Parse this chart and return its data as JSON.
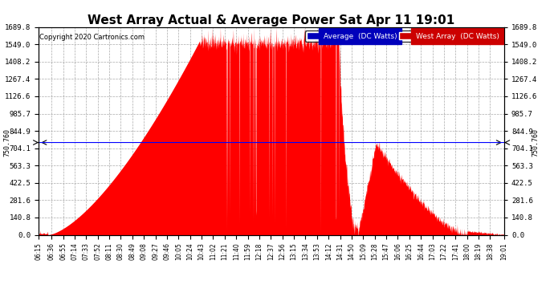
{
  "title": "West Array Actual & Average Power Sat Apr 11 19:01",
  "copyright": "Copyright 2020 Cartronics.com",
  "legend_labels": [
    "Average  (DC Watts)",
    "West Array  (DC Watts)"
  ],
  "legend_bg_colors": [
    "#0000bb",
    "#cc0000"
  ],
  "yticks": [
    0.0,
    140.8,
    281.6,
    422.5,
    563.3,
    704.1,
    844.9,
    985.7,
    1126.6,
    1267.4,
    1408.2,
    1549.0,
    1689.8
  ],
  "ymax": 1689.8,
  "ymin": 0.0,
  "hline_y": 750.76,
  "hline_label": "750.760",
  "background_color": "#ffffff",
  "plot_bg_color": "#ffffff",
  "grid_color": "#aaaaaa",
  "west_array_color": "#ff0000",
  "average_color": "#0000ff",
  "title_fontsize": 11,
  "xtick_labels": [
    "06:15",
    "06:36",
    "06:55",
    "07:14",
    "07:33",
    "07:52",
    "08:11",
    "08:30",
    "08:49",
    "09:08",
    "09:27",
    "09:46",
    "10:05",
    "10:24",
    "10:43",
    "11:02",
    "11:21",
    "11:40",
    "11:59",
    "12:18",
    "12:37",
    "12:56",
    "13:15",
    "13:34",
    "13:53",
    "14:12",
    "14:31",
    "14:50",
    "15:09",
    "15:28",
    "15:47",
    "16:06",
    "16:25",
    "16:44",
    "17:03",
    "17:22",
    "17:41",
    "18:00",
    "18:19",
    "18:38",
    "19:01"
  ]
}
